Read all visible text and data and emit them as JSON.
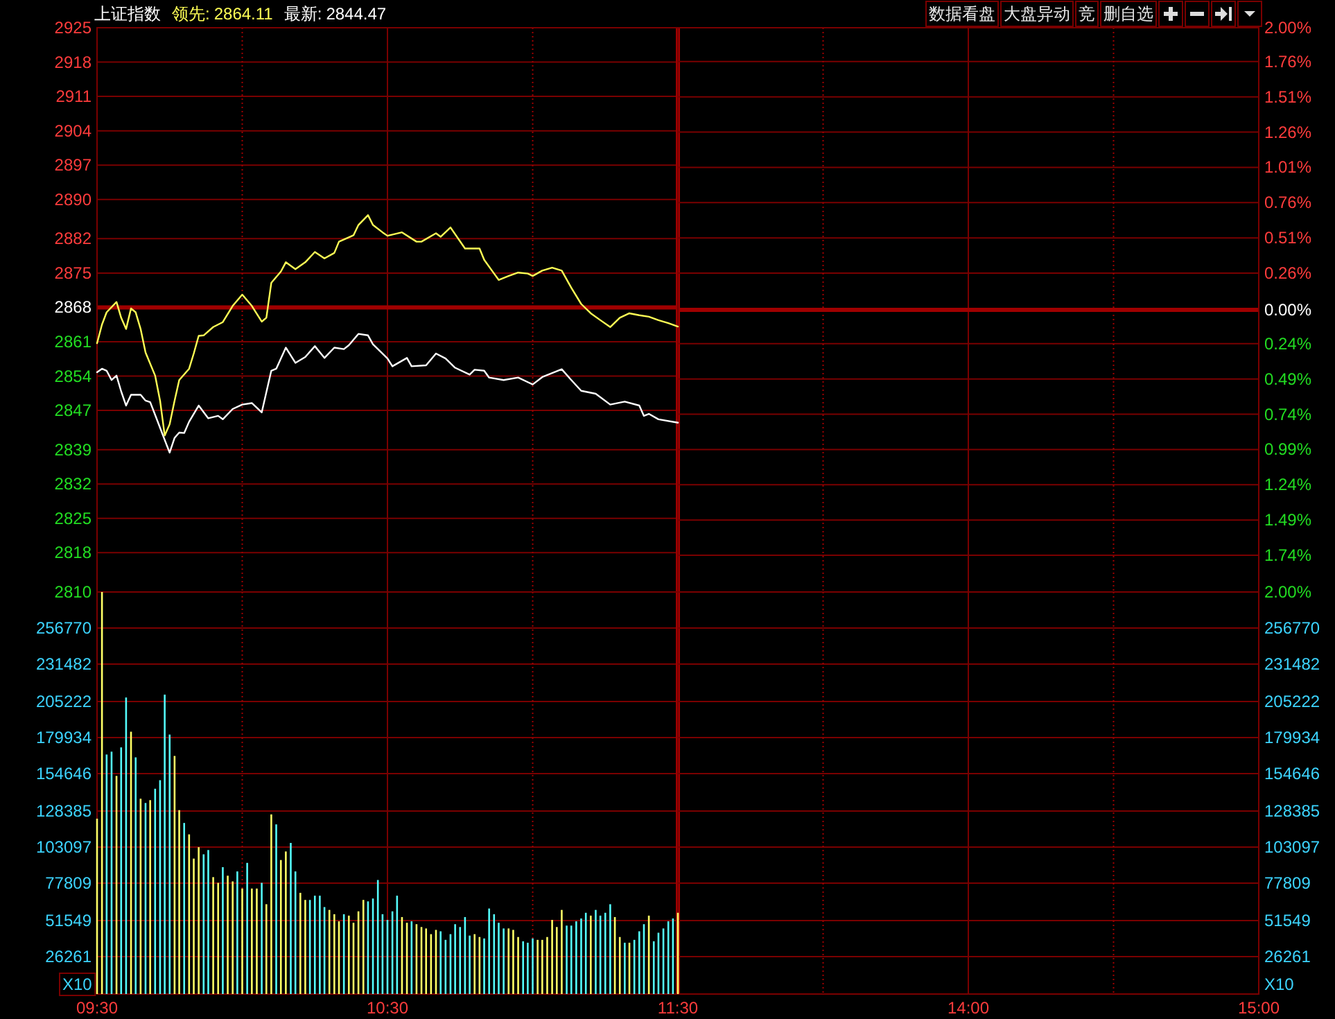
{
  "chart_data": [
    {
      "type": "line",
      "title": "上证指数",
      "legend": "top left",
      "tick_labels": "y",
      "grid": true,
      "xlim": [
        9.5,
        11.5
      ],
      "xticks": [
        9.5,
        {
          "value": 10,
          "label": null
        },
        10.5,
        {
          "value": 11,
          "label": null
        },
        11.5
      ],
      "ylim": [
        2810,
        2925
      ],
      "yticks": [
        2810,
        2818,
        2825,
        2832,
        2839,
        2847,
        2854,
        2861,
        2868,
        2875,
        2882,
        2890,
        2897,
        2904,
        2911,
        2918,
        2925
      ],
      "ref_lines": [
        {
          "axis": "y",
          "value": 2868,
          "color": "#a00000"
        },
        {
          "axis": "x",
          "value": 11.5,
          "color": "#a00000"
        }
      ],
      "annotations": [
        "2864.11",
        "2844.47"
      ],
      "series": [
        {
          "name": "领先:",
          "color": "#ffff55",
          "x": [
            9.5,
            9.517,
            9.533,
            9.567,
            9.583,
            9.6,
            9.617,
            9.633,
            9.65,
            9.667,
            9.7,
            9.717,
            9.733,
            9.75,
            9.767,
            9.783,
            9.817,
            9.833,
            9.85,
            9.867,
            9.9,
            9.933,
            9.967,
            10,
            10.033,
            10.067,
            10.083,
            10.1,
            10.133,
            10.15,
            10.183,
            10.217,
            10.25,
            10.283,
            10.317,
            10.333,
            10.383,
            10.4,
            10.433,
            10.45,
            10.483,
            10.5,
            10.55,
            10.6,
            10.617,
            10.667,
            10.683,
            10.717,
            10.767,
            10.817,
            10.833,
            10.867,
            10.883,
            10.917,
            10.95,
            10.983,
            11,
            11.033,
            11.067,
            11.1,
            11.133,
            11.167,
            11.2,
            11.233,
            11.267,
            11.3,
            11.333,
            11.367,
            11.4,
            11.433,
            11.467,
            11.5
          ],
          "values": [
            2860.7,
            2864.5,
            2867.0,
            2869.1,
            2865.9,
            2863.6,
            2867.8,
            2867.0,
            2863.6,
            2858.8,
            2854.1,
            2849.0,
            2841.9,
            2844.2,
            2849.0,
            2853.2,
            2855.5,
            2858.6,
            2862.2,
            2862.3,
            2864.0,
            2865.0,
            2868.3,
            2870.6,
            2868.3,
            2865.1,
            2865.9,
            2873.0,
            2875.3,
            2877.2,
            2875.8,
            2877.2,
            2879.3,
            2878.0,
            2879.1,
            2881.4,
            2882.7,
            2884.8,
            2886.8,
            2884.8,
            2883.3,
            2882.6,
            2883.3,
            2881.4,
            2881.4,
            2883.1,
            2882.4,
            2884.3,
            2880.0,
            2880.0,
            2877.7,
            2874.9,
            2873.6,
            2874.4,
            2875.1,
            2874.9,
            2874.4,
            2875.5,
            2876.1,
            2875.5,
            2872.0,
            2868.7,
            2866.8,
            2865.4,
            2864.0,
            2865.9,
            2866.8,
            2866.4,
            2866.1,
            2865.4,
            2864.8,
            2864.1
          ]
        },
        {
          "name": "最新:",
          "color": "#ffffff",
          "x": [
            9.5,
            9.517,
            9.533,
            9.55,
            9.567,
            9.583,
            9.6,
            9.617,
            9.65,
            9.667,
            9.683,
            9.7,
            9.733,
            9.75,
            9.767,
            9.783,
            9.8,
            9.817,
            9.85,
            9.883,
            9.917,
            9.933,
            9.967,
            10,
            10.033,
            10.067,
            10.1,
            10.117,
            10.15,
            10.183,
            10.217,
            10.25,
            10.283,
            10.317,
            10.35,
            10.367,
            10.4,
            10.433,
            10.45,
            10.5,
            10.517,
            10.567,
            10.583,
            10.633,
            10.667,
            10.7,
            10.733,
            10.783,
            10.8,
            10.833,
            10.85,
            10.9,
            10.95,
            11,
            11.033,
            11.1,
            11.133,
            11.167,
            11.217,
            11.267,
            11.317,
            11.367,
            11.383,
            11.4,
            11.433,
            11.5
          ],
          "values": [
            2854.8,
            2855.5,
            2855.1,
            2853.2,
            2854.1,
            2850.9,
            2848.0,
            2850.2,
            2850.2,
            2849.0,
            2848.7,
            2846.1,
            2841.0,
            2838.4,
            2841.4,
            2842.5,
            2842.4,
            2844.7,
            2848.0,
            2845.4,
            2845.9,
            2845.2,
            2847.3,
            2848.2,
            2848.5,
            2846.6,
            2855.1,
            2855.5,
            2859.8,
            2856.7,
            2857.9,
            2860.1,
            2857.7,
            2859.8,
            2859.5,
            2860.3,
            2862.6,
            2862.3,
            2860.5,
            2857.6,
            2856.0,
            2857.7,
            2856.0,
            2856.2,
            2858.6,
            2857.6,
            2855.7,
            2854.3,
            2855.3,
            2855.1,
            2853.7,
            2853.2,
            2853.7,
            2852.3,
            2853.8,
            2855.4,
            2853.2,
            2851.0,
            2850.4,
            2848.2,
            2848.8,
            2848.0,
            2845.9,
            2846.3,
            2845.2,
            2844.5
          ]
        }
      ]
    },
    {
      "type": "line",
      "tick_labels": "y",
      "grid": true,
      "xlim": [
        13,
        15
      ],
      "xticks": [
        {
          "value": 13.5,
          "label": null
        },
        14,
        {
          "value": 14.5,
          "label": null
        },
        15
      ],
      "y2lim": [
        -2.0,
        2.0
      ],
      "y2ticks": [
        {
          "value": -2.0,
          "label": "2.00%"
        },
        {
          "value": -1.74,
          "label": "1.74%"
        },
        {
          "value": -1.49,
          "label": "1.49%"
        },
        {
          "value": -1.24,
          "label": "1.24%"
        },
        {
          "value": -0.99,
          "label": "0.99%"
        },
        {
          "value": -0.74,
          "label": "0.74%"
        },
        {
          "value": -0.49,
          "label": "0.49%"
        },
        {
          "value": -0.24,
          "label": "0.24%"
        },
        {
          "value": 0,
          "label": "0.00%"
        },
        {
          "value": 0.26,
          "label": "0.26%"
        },
        {
          "value": 0.51,
          "label": "0.51%"
        },
        {
          "value": 0.76,
          "label": "0.76%"
        },
        {
          "value": 1.01,
          "label": "1.01%"
        },
        {
          "value": 1.26,
          "label": "1.26%"
        },
        {
          "value": 1.51,
          "label": "1.51%"
        },
        {
          "value": 1.76,
          "label": "1.76%"
        },
        {
          "value": 2.0,
          "label": "2.00%"
        }
      ],
      "ref_lines": [
        {
          "axis": "y2",
          "value": 0,
          "color": "#a00000"
        }
      ],
      "annotations": [
        "数据看盘",
        "大盘异动",
        "竞",
        "删自选"
      ]
    },
    {
      "type": "bar",
      "grid": true,
      "ylabel": "X10",
      "xlim": [
        9.5,
        11.5
      ],
      "xticks": [
        {
          "value": 9.5,
          "label": "09:30"
        },
        {
          "value": 10,
          "label": null
        },
        {
          "value": 10.5,
          "label": "10:30"
        },
        {
          "value": 11,
          "label": null
        },
        {
          "value": 11.5,
          "label": "11:30"
        }
      ],
      "ylim": [
        0,
        282000
      ],
      "yticks": [
        26261,
        51549,
        77809,
        103097,
        128385,
        154646,
        179934,
        205222,
        231482,
        256770
      ],
      "ref_lines": [
        {
          "axis": "x",
          "value": 11.5,
          "color": "#a00000"
        }
      ],
      "x": [
        9.5,
        9.517,
        9.533,
        9.55,
        9.567,
        9.583,
        9.6,
        9.617,
        9.633,
        9.65,
        9.667,
        9.683,
        9.7,
        9.717,
        9.733,
        9.75,
        9.767,
        9.783,
        9.8,
        9.817,
        9.833,
        9.85,
        9.867,
        9.883,
        9.9,
        9.917,
        9.933,
        9.95,
        9.967,
        9.983,
        10,
        10.017,
        10.033,
        10.05,
        10.067,
        10.083,
        10.1,
        10.117,
        10.133,
        10.15,
        10.167,
        10.183,
        10.2,
        10.217,
        10.233,
        10.25,
        10.267,
        10.283,
        10.3,
        10.317,
        10.333,
        10.35,
        10.367,
        10.383,
        10.4,
        10.417,
        10.433,
        10.45,
        10.467,
        10.483,
        10.5,
        10.517,
        10.533,
        10.55,
        10.567,
        10.583,
        10.6,
        10.617,
        10.633,
        10.65,
        10.667,
        10.683,
        10.7,
        10.717,
        10.733,
        10.75,
        10.767,
        10.783,
        10.8,
        10.817,
        10.833,
        10.85,
        10.867,
        10.883,
        10.9,
        10.917,
        10.933,
        10.95,
        10.967,
        10.983,
        11,
        11.017,
        11.033,
        11.05,
        11.067,
        11.083,
        11.1,
        11.117,
        11.133,
        11.15,
        11.167,
        11.183,
        11.2,
        11.217,
        11.233,
        11.25,
        11.267,
        11.283,
        11.3,
        11.317,
        11.333,
        11.35,
        11.367,
        11.383,
        11.4,
        11.417,
        11.433,
        11.45,
        11.467,
        11.483,
        11.5
      ],
      "values": [
        123000,
        282000,
        168000,
        170000,
        153000,
        173000,
        208000,
        184000,
        166000,
        137000,
        134000,
        136000,
        144000,
        150000,
        210000,
        182000,
        167000,
        129000,
        120000,
        112000,
        95000,
        103000,
        98000,
        101000,
        82000,
        78000,
        89000,
        83000,
        79000,
        86000,
        74000,
        92000,
        74000,
        74000,
        78000,
        63000,
        126000,
        119000,
        94000,
        100000,
        106000,
        86000,
        71000,
        66000,
        66000,
        69000,
        69000,
        61000,
        59000,
        56000,
        51000,
        56000,
        55000,
        50000,
        58000,
        66000,
        65000,
        67000,
        80000,
        56000,
        52000,
        58000,
        69000,
        54000,
        50000,
        51000,
        49000,
        47000,
        46000,
        42000,
        45000,
        44000,
        38000,
        42000,
        49000,
        47000,
        54000,
        41000,
        42000,
        40000,
        39000,
        60000,
        56000,
        50000,
        46000,
        46000,
        45000,
        40000,
        37000,
        36000,
        39000,
        38000,
        38000,
        40000,
        52000,
        47000,
        59000,
        48000,
        48000,
        51000,
        53000,
        57000,
        55000,
        59000,
        55000,
        57000,
        63000,
        54000,
        40000,
        36000,
        36000,
        38000,
        44000,
        49000,
        55000,
        37000,
        43000,
        46000,
        51000,
        53000,
        57000
      ],
      "colors": [
        "#ffff66",
        "#ffff66",
        "#54fcfc",
        "#54fcfc",
        "#ffff66",
        "#54fcfc",
        "#54fcfc",
        "#ffff66",
        "#54fcfc",
        "#ffff66",
        "#54fcfc",
        "#ffff66",
        "#54fcfc",
        "#54fcfc",
        "#54fcfc",
        "#54fcfc",
        "#ffff66",
        "#ffff66",
        "#54fcfc",
        "#ffff66",
        "#ffff66",
        "#ffff66",
        "#54fcfc",
        "#54fcfc",
        "#ffff66",
        "#ffff66",
        "#54fcfc",
        "#ffff66",
        "#ffff66",
        "#54fcfc",
        "#ffff66",
        "#54fcfc",
        "#ffff66",
        "#ffff66",
        "#54fcfc",
        "#ffff66",
        "#ffff66",
        "#54fcfc",
        "#ffff66",
        "#ffff66",
        "#54fcfc",
        "#54fcfc",
        "#ffff66",
        "#ffff66",
        "#54fcfc",
        "#54fcfc",
        "#54fcfc",
        "#54fcfc",
        "#ffff66",
        "#ffff66",
        "#ffff66",
        "#54fcfc",
        "#ffff66",
        "#ffff66",
        "#ffff66",
        "#ffff66",
        "#54fcfc",
        "#54fcfc",
        "#54fcfc",
        "#54fcfc",
        "#54fcfc",
        "#54fcfc",
        "#54fcfc",
        "#ffff66",
        "#ffff66",
        "#54fcfc",
        "#ffff66",
        "#ffff66",
        "#ffff66",
        "#ffff66",
        "#ffff66",
        "#54fcfc",
        "#54fcfc",
        "#54fcfc",
        "#54fcfc",
        "#54fcfc",
        "#54fcfc",
        "#54fcfc",
        "#ffff66",
        "#ffff66",
        "#54fcfc",
        "#54fcfc",
        "#54fcfc",
        "#54fcfc",
        "#54fcfc",
        "#ffff66",
        "#ffff66",
        "#ffff66",
        "#54fcfc",
        "#54fcfc",
        "#54fcfc",
        "#ffff66",
        "#ffff66",
        "#ffff66",
        "#ffff66",
        "#ffff66",
        "#ffff66",
        "#54fcfc",
        "#54fcfc",
        "#54fcfc",
        "#54fcfc",
        "#54fcfc",
        "#ffff66",
        "#54fcfc",
        "#54fcfc",
        "#54fcfc",
        "#54fcfc",
        "#ffff66",
        "#ffff66",
        "#54fcfc",
        "#ffff66",
        "#54fcfc",
        "#54fcfc",
        "#54fcfc",
        "#ffff66",
        "#54fcfc",
        "#54fcfc",
        "#54fcfc",
        "#54fcfc",
        "#54fcfc",
        "#ffff66"
      ]
    },
    {
      "type": "bar",
      "grid": true,
      "y2label": "X10",
      "xlim": [
        13,
        15
      ],
      "xticks": [
        {
          "value": 13.5,
          "label": null
        },
        {
          "value": 14,
          "label": "14:00"
        },
        {
          "value": 14.5,
          "label": null
        },
        {
          "value": 15,
          "label": "15:00"
        }
      ],
      "y2lim": [
        0,
        282000
      ],
      "y2ticks": [
        26261,
        51549,
        77809,
        103097,
        128385,
        154646,
        179934,
        205222,
        231482,
        256770
      ]
    }
  ]
}
